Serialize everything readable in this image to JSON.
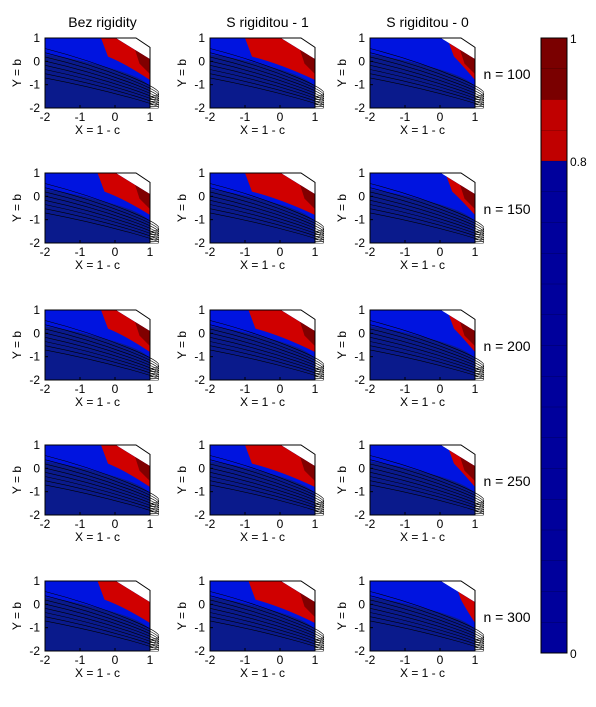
{
  "chart_data": {
    "type": "contour",
    "column_titles": [
      "Bez rigidity",
      "S rigiditou - 1",
      "S rigiditou - 0"
    ],
    "row_labels": [
      "n = 100",
      "n = 150",
      "n = 200",
      "n = 250",
      "n = 300"
    ],
    "xlabel": "X = 1 - c",
    "ylabel": "Y = b",
    "xlim": [
      -2,
      1
    ],
    "ylim": [
      -2,
      1
    ],
    "x_ticks": [
      "-2",
      "-1",
      "0",
      "1"
    ],
    "y_ticks": [
      "1",
      "0",
      "-1",
      "-2"
    ],
    "colorbar": {
      "ticks": [
        "1",
        "0.8",
        "0"
      ],
      "bands": [
        {
          "from": 0.0,
          "to": 0.8,
          "color": "#00009c"
        },
        {
          "from": 0.8,
          "to": 1.0,
          "color": "#c00000"
        }
      ],
      "top_band_color": "#7a0000"
    },
    "colors": {
      "deep_blue": "#0a1a8c",
      "mid_blue": "#0014e0",
      "red": "#d00000",
      "dark_red": "#800000",
      "contour_line": "#000000"
    },
    "panels": [
      [
        {
          "red_from_x": -0.4,
          "red_to_x": 0.45,
          "dark_red": true
        },
        {
          "red_from_x": -1.0,
          "red_to_x": 0.4,
          "dark_red": true
        },
        {
          "red_from_x": 0.2,
          "red_to_x": 0.6,
          "dark_red": true
        }
      ],
      [
        {
          "red_from_x": -0.5,
          "red_to_x": 0.45,
          "dark_red": true
        },
        {
          "red_from_x": -1.0,
          "red_to_x": 0.4,
          "dark_red": true
        },
        {
          "red_from_x": 0.15,
          "red_to_x": 0.6,
          "dark_red": true
        }
      ],
      [
        {
          "red_from_x": -0.4,
          "red_to_x": 0.5,
          "dark_red": true
        },
        {
          "red_from_x": -0.9,
          "red_to_x": 0.5,
          "dark_red": true
        },
        {
          "red_from_x": 0.2,
          "red_to_x": 0.6,
          "dark_red": true
        }
      ],
      [
        {
          "red_from_x": -0.4,
          "red_to_x": 0.5,
          "dark_red": true
        },
        {
          "red_from_x": -1.0,
          "red_to_x": 0.45,
          "dark_red": true
        },
        {
          "red_from_x": 0.2,
          "red_to_x": 0.6,
          "dark_red": true
        }
      ],
      [
        {
          "red_from_x": -0.5,
          "red_to_x": 0.6,
          "dark_red": false
        },
        {
          "red_from_x": -0.9,
          "red_to_x": 0.45,
          "dark_red": true
        },
        {
          "red_from_x": 0.4,
          "red_to_x": 0.7,
          "dark_red": false
        }
      ]
    ]
  }
}
